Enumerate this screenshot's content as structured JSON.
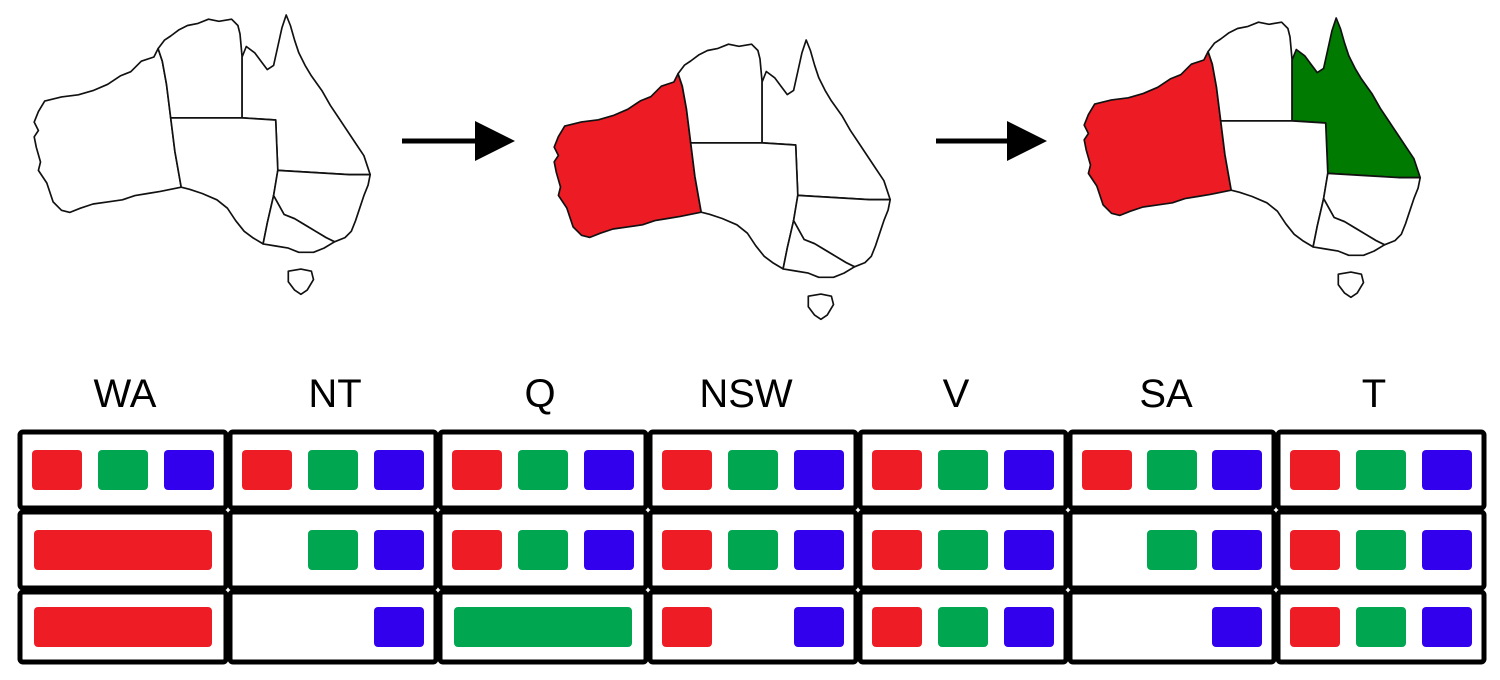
{
  "colors": {
    "red": "#ee1c25",
    "green": "#00a650",
    "blue": "#3300ee",
    "map_red": "#ed1c24",
    "map_green": "#007a00"
  },
  "maps": [
    {
      "name": "step-1",
      "fills": {
        "WA": "white",
        "NT": "white",
        "Q": "white",
        "SA": "white",
        "NSW": "white",
        "V": "white",
        "T": "white"
      }
    },
    {
      "name": "step-2",
      "fills": {
        "WA": "red",
        "NT": "white",
        "Q": "white",
        "SA": "white",
        "NSW": "white",
        "V": "white",
        "T": "white"
      }
    },
    {
      "name": "step-3",
      "fills": {
        "WA": "red",
        "NT": "white",
        "Q": "green",
        "SA": "white",
        "NSW": "white",
        "V": "white",
        "T": "white"
      }
    }
  ],
  "columns": [
    "WA",
    "NT",
    "Q",
    "NSW",
    "V",
    "SA",
    "T"
  ],
  "domains": [
    [
      [
        "red",
        "green",
        "blue"
      ],
      [
        "red",
        "green",
        "blue"
      ],
      [
        "red",
        "green",
        "blue"
      ],
      [
        "red",
        "green",
        "blue"
      ],
      [
        "red",
        "green",
        "blue"
      ],
      [
        "red",
        "green",
        "blue"
      ],
      [
        "red",
        "green",
        "blue"
      ]
    ],
    [
      [
        "red"
      ],
      [
        "green",
        "blue"
      ],
      [
        "red",
        "green",
        "blue"
      ],
      [
        "red",
        "green",
        "blue"
      ],
      [
        "red",
        "green",
        "blue"
      ],
      [
        "green",
        "blue"
      ],
      [
        "red",
        "green",
        "blue"
      ]
    ],
    [
      [
        "red"
      ],
      [
        "blue"
      ],
      [
        "green"
      ],
      [
        "red",
        "blue"
      ],
      [
        "red",
        "green",
        "blue"
      ],
      [
        "blue"
      ],
      [
        "red",
        "green",
        "blue"
      ]
    ]
  ]
}
